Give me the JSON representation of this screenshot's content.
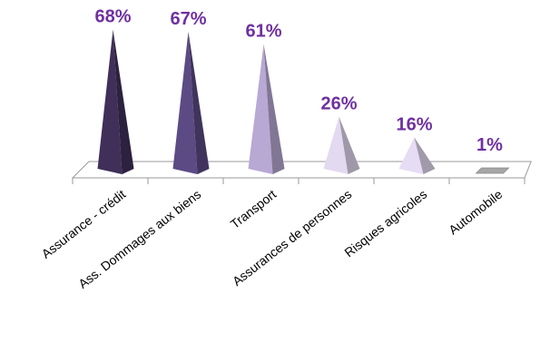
{
  "chart_data": {
    "type": "bar",
    "style": "3d-pyramid",
    "title": "",
    "xlabel": "",
    "ylabel": "",
    "ylim": [
      0,
      70
    ],
    "grid": false,
    "legend": "none",
    "categories": [
      "Assurance - crédit",
      "Ass. Dommages aux biens",
      "Transport",
      "Assurances de personnes",
      "Risques agricoles",
      "Automobile"
    ],
    "values": [
      68,
      67,
      61,
      26,
      16,
      1
    ],
    "data_labels": [
      "68%",
      "67%",
      "61%",
      "26%",
      "16%",
      "1%"
    ],
    "colors": [
      "#3f2f59",
      "#5c4a85",
      "#b8a8d4",
      "#e3d9f0",
      "#e6dcf3",
      "#d0d0d0"
    ],
    "label_color": "#7030a0"
  }
}
